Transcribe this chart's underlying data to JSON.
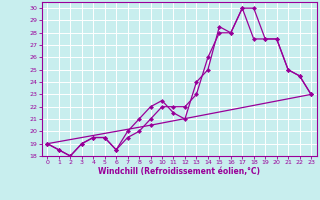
{
  "xlabel": "Windchill (Refroidissement éolien,°C)",
  "bg_color": "#c8eeee",
  "line_color": "#990099",
  "grid_color": "#aadddd",
  "xlim": [
    -0.5,
    23.5
  ],
  "ylim": [
    18,
    30.5
  ],
  "yticks": [
    18,
    19,
    20,
    21,
    22,
    23,
    24,
    25,
    26,
    27,
    28,
    29,
    30
  ],
  "xticks": [
    0,
    1,
    2,
    3,
    4,
    5,
    6,
    7,
    8,
    9,
    10,
    11,
    12,
    13,
    14,
    15,
    16,
    17,
    18,
    19,
    20,
    21,
    22,
    23
  ],
  "line1_x": [
    0,
    1,
    2,
    3,
    4,
    5,
    6,
    7,
    8,
    9,
    10,
    11,
    12,
    13,
    14,
    15,
    16,
    17,
    18,
    19,
    20,
    21,
    22,
    23
  ],
  "line1_y": [
    19,
    18.5,
    18,
    19,
    19.5,
    19.5,
    18.5,
    19.5,
    20,
    21,
    22,
    22,
    22,
    23,
    26,
    28,
    28,
    30,
    30,
    27.5,
    27.5,
    25,
    24.5,
    23
  ],
  "line2_x": [
    0,
    1,
    2,
    3,
    4,
    5,
    6,
    7,
    8,
    9,
    10,
    11,
    12,
    13,
    14,
    15,
    16,
    17,
    18,
    19,
    20,
    21,
    22,
    23
  ],
  "line2_y": [
    19,
    18.5,
    18,
    19,
    19.5,
    19.5,
    18.5,
    20,
    21,
    22,
    22.5,
    21.5,
    21,
    24,
    25,
    28.5,
    28,
    30,
    27.5,
    27.5,
    27.5,
    25,
    24.5,
    23
  ],
  "line3_x": [
    0,
    9,
    23
  ],
  "line3_y": [
    19,
    20.5,
    23
  ],
  "marker_size": 2.5,
  "line_width": 0.9
}
